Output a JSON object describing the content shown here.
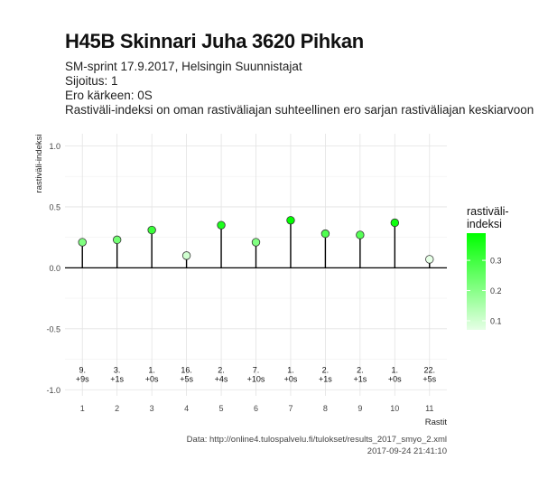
{
  "header": {
    "title": "H45B Skinnari Juha 3620 Pihkan",
    "subtitle_lines": [
      "SM-sprint 17.9.2017, Helsingin Suunnistajat",
      "Sijoitus: 1",
      "Ero kärkeen: 0S",
      "Rastiväli-indeksi on oman rastiväliajan suhteellinen ero sarjan rastiväliajan keskiarvoon"
    ]
  },
  "footer": {
    "source": "Data: http://online4.tulospalvelu.fi/tulokset/results_2017_smyo_2.xml",
    "timestamp": "2017-09-24 21:41:10"
  },
  "chart_data": {
    "type": "scatter",
    "style": "lollipop",
    "xlabel": "Rastit",
    "ylabel": "rastiväli-indeksi",
    "x": [
      1,
      2,
      3,
      4,
      5,
      6,
      7,
      8,
      9,
      10,
      11
    ],
    "values": [
      0.21,
      0.23,
      0.31,
      0.1,
      0.35,
      0.21,
      0.39,
      0.28,
      0.27,
      0.37,
      0.07
    ],
    "annotations": [
      [
        "9.",
        "+9s"
      ],
      [
        "3.",
        "+1s"
      ],
      [
        "1.",
        "+0s"
      ],
      [
        "16.",
        "+5s"
      ],
      [
        "2.",
        "+4s"
      ],
      [
        "7.",
        "+10s"
      ],
      [
        "1.",
        "+0s"
      ],
      [
        "2.",
        "+1s"
      ],
      [
        "2.",
        "+1s"
      ],
      [
        "1.",
        "+0s"
      ],
      [
        "22.",
        "+5s"
      ]
    ],
    "ylim": [
      -1.05,
      1.1
    ],
    "yticks": [
      -1.0,
      -0.5,
      0.0,
      0.5,
      1.0
    ],
    "ytick_labels": [
      "-1.0",
      "-0.5",
      "0.0",
      "0.5",
      "1.0"
    ],
    "grid": true,
    "legend": {
      "title": [
        "rastiväli-",
        "indeksi"
      ],
      "ticks": [
        0.1,
        0.2,
        0.3
      ],
      "tick_labels": [
        "0.1",
        "0.2",
        "0.3"
      ],
      "range": [
        0.07,
        0.39
      ],
      "color_low": "#e6ffe6",
      "color_high": "#00ff00",
      "placement": "right"
    },
    "colors": {
      "stem": "#000000",
      "zero_line": "#000000",
      "grid": "#e3e3e3",
      "point_stroke": "#333333"
    }
  }
}
